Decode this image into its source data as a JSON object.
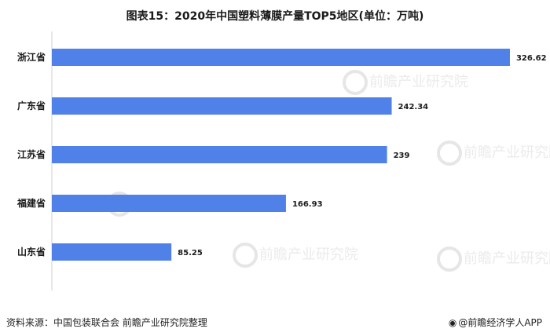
{
  "title": "图表15：2020年中国塑料薄膜产量TOP5地区(单位：万吨)",
  "source": "资料来源：中国包装联合会 前瞻产业研究院整理",
  "brand": "@前瞻经济学人APP",
  "watermark": "前瞻产业研究院",
  "chart_data": {
    "type": "bar",
    "orientation": "horizontal",
    "title": "图表15：2020年中国塑料薄膜产量TOP5地区(单位：万吨)",
    "categories": [
      "浙江省",
      "广东省",
      "江苏省",
      "福建省",
      "山东省"
    ],
    "values": [
      326.62,
      242.34,
      239,
      166.93,
      85.25
    ],
    "value_labels": [
      "326.62",
      "242.34",
      "239",
      "166.93",
      "85.25"
    ],
    "unit": "万吨",
    "xlim": [
      0,
      330
    ],
    "bar_color": "#4f81e8",
    "grid": false,
    "legend": "none"
  }
}
